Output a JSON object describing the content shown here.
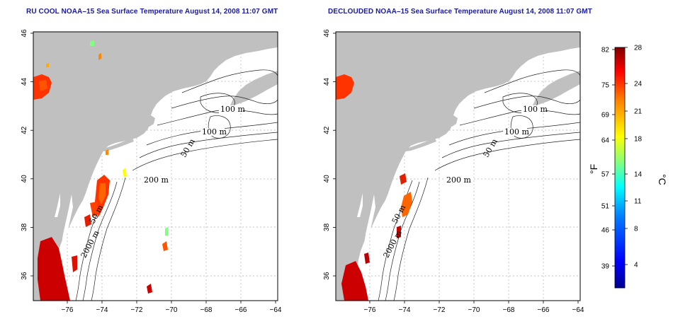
{
  "panels": [
    {
      "title": "RU COOL NOAA–15 Sea Surface Temperature August 14, 2008 11:07 GMT",
      "contour_labels": [
        "100 m",
        "100 m",
        "50 m",
        "200 m",
        "50 m",
        "2000 m"
      ]
    },
    {
      "title": "DECLOUDED NOAA–15 Sea Surface Temperature August 14, 2008 11:07 GMT",
      "contour_labels": [
        "100 m",
        "100 m",
        "50 m",
        "200 m",
        "50 m",
        "2000 m"
      ]
    }
  ],
  "axes": {
    "x_ticks": [
      "−76",
      "−74",
      "−72",
      "−70",
      "−68",
      "−66",
      "−64"
    ],
    "y_ticks": [
      "46",
      "44",
      "42",
      "40",
      "38",
      "36"
    ]
  },
  "colorbar": {
    "f_ticks": [
      "82",
      "75",
      "69",
      "64",
      "57",
      "51",
      "46",
      "39"
    ],
    "c_ticks": [
      "28",
      "24",
      "21",
      "18",
      "14",
      "11",
      "8",
      "4"
    ],
    "f_unit": "°F",
    "c_unit": "°C",
    "colors": [
      "#000090",
      "#0000ff",
      "#0080ff",
      "#00ffff",
      "#80ff80",
      "#ffff00",
      "#ff8000",
      "#ff0000",
      "#800000"
    ]
  },
  "colors": {
    "land": "#c0c0c0",
    "title": "#1a1a9c",
    "grid": "#b0b0b0"
  }
}
